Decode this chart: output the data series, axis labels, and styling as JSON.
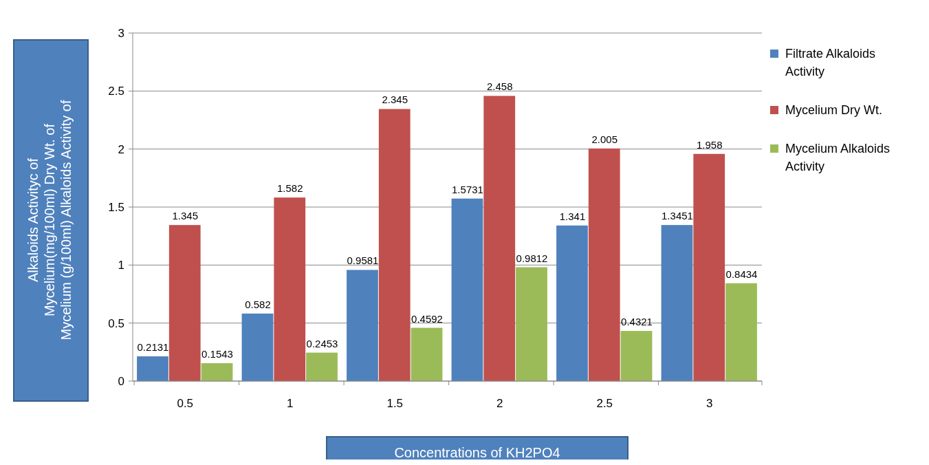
{
  "chart_data": {
    "type": "bar",
    "xlabel": "Concentrations of KH2PO4",
    "ylabel": "Alkaloids Activityc of\nMycelium(mg/100ml) Dry Wt. of\nMycelium (g/100ml) Alkaloids Activity of",
    "categories": [
      "0.5",
      "1",
      "1.5",
      "2",
      "2.5",
      "3"
    ],
    "series": [
      {
        "name": "Filtrate Alkaloids Activity",
        "color": "#4f81bd",
        "values": [
          0.2131,
          0.582,
          0.9581,
          1.5731,
          1.341,
          1.3451
        ]
      },
      {
        "name": "Mycelium Dry Wt.",
        "color": "#c0504d",
        "values": [
          1.345,
          1.582,
          2.345,
          2.458,
          2.005,
          1.958
        ]
      },
      {
        "name": "Mycelium Alkaloids Activity",
        "color": "#9bbb59",
        "values": [
          0.1543,
          0.2453,
          0.4592,
          0.9812,
          0.4321,
          0.8434
        ]
      }
    ],
    "ylim": [
      0,
      3
    ],
    "yticks": [
      0,
      0.5,
      1,
      1.5,
      2,
      2.5,
      3
    ],
    "grid": "y",
    "legend": "right",
    "data_labels": true
  }
}
